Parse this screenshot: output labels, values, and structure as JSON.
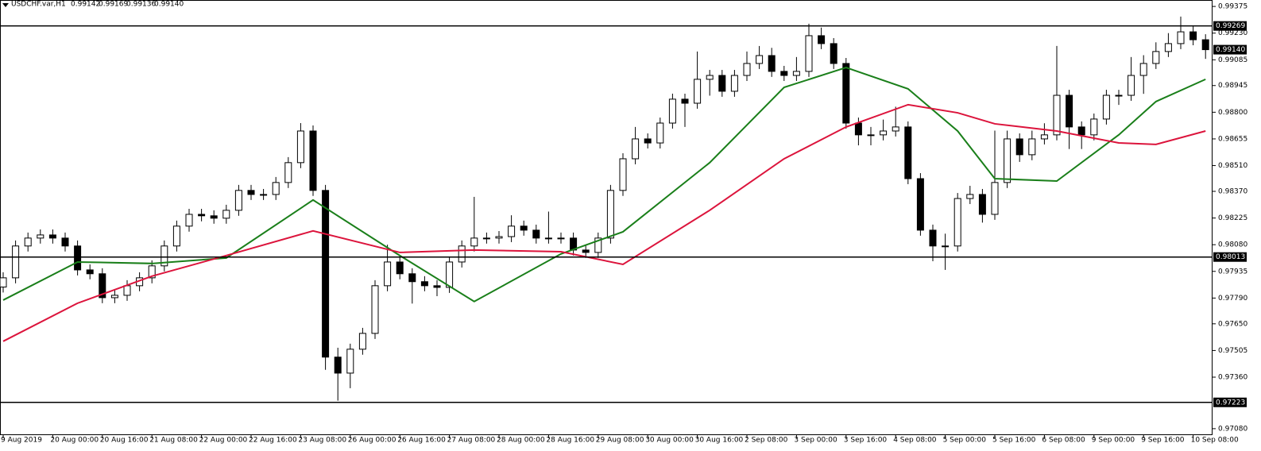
{
  "chart_data": {
    "type": "candlestick",
    "header": {
      "symbol": "USDCHF.var,H1",
      "quote": [
        "0.99142",
        "0.99169",
        "0.99136",
        "0.99140"
      ]
    },
    "time_labels": [
      "9 Aug 2019",
      "20 Aug 00:00",
      "20 Aug 16:00",
      "21 Aug 08:00",
      "22 Aug 00:00",
      "22 Aug 16:00",
      "23 Aug 08:00",
      "26 Aug 00:00",
      "26 Aug 16:00",
      "27 Aug 08:00",
      "28 Aug 00:00",
      "28 Aug 16:00",
      "29 Aug 08:00",
      "30 Aug 00:00",
      "30 Aug 16:00",
      "2 Sep 08:00",
      "3 Sep 00:00",
      "3 Sep 16:00",
      "4 Sep 08:00",
      "5 Sep 00:00",
      "5 Sep 16:00",
      "6 Sep 08:00",
      "9 Sep 00:00",
      "9 Sep 16:00",
      "10 Sep 08:00"
    ],
    "open": [
      0.9785,
      0.979,
      0.98073,
      0.98116,
      0.98133,
      0.98116,
      0.98073,
      0.97943,
      0.97922,
      0.97792,
      0.97805,
      0.97857,
      0.979,
      0.97965,
      0.98073,
      0.98181,
      0.98245,
      0.98237,
      0.98224,
      0.98267,
      0.98375,
      0.98353,
      0.98353,
      0.98418,
      0.98526,
      0.98698,
      0.98375,
      0.97469,
      0.97382,
      0.97512,
      0.97598,
      0.97857,
      0.97986,
      0.97922,
      0.97879,
      0.97857,
      0.97848,
      0.97986,
      0.98073,
      0.98116,
      0.98116,
      0.98124,
      0.98181,
      0.98159,
      0.98116,
      0.98116,
      0.98116,
      0.98051,
      0.98038,
      0.98116,
      0.98375,
      0.98547,
      0.98655,
      0.98633,
      0.98741,
      0.98871,
      0.98849,
      0.98979,
      0.99,
      0.98914,
      0.99,
      0.99065,
      0.99108,
      0.99022,
      0.99,
      0.99022,
      0.99216,
      0.99173,
      0.99065,
      0.98741,
      0.98677,
      0.98677,
      0.98698,
      0.9872,
      0.98439,
      0.98159,
      0.98073,
      0.98073,
      0.98331,
      0.98353,
      0.98245,
      0.98418,
      0.98655,
      0.98569,
      0.98655,
      0.98677,
      0.98892,
      0.9872,
      0.98677,
      0.98763,
      0.98892,
      0.98892,
      0.99,
      0.99065,
      0.9913,
      0.99173,
      0.99237,
      0.99194
    ],
    "high": [
      0.9793,
      0.98103,
      0.98146,
      0.98163,
      0.98163,
      0.98146,
      0.98103,
      0.97973,
      0.97952,
      0.97835,
      0.97887,
      0.9793,
      0.97995,
      0.98103,
      0.98211,
      0.98275,
      0.98275,
      0.98267,
      0.98297,
      0.98405,
      0.98405,
      0.98383,
      0.98448,
      0.98556,
      0.98741,
      0.98728,
      0.98405,
      0.9752,
      0.97542,
      0.97628,
      0.97887,
      0.9808,
      0.98016,
      0.97952,
      0.97909,
      0.97887,
      0.98016,
      0.98103,
      0.9834,
      0.98146,
      0.98154,
      0.9824,
      0.98211,
      0.98189,
      0.9826,
      0.98146,
      0.98146,
      0.98081,
      0.98146,
      0.98405,
      0.98577,
      0.9872,
      0.98685,
      0.98771,
      0.98901,
      0.98901,
      0.9913,
      0.9903,
      0.9903,
      0.9903,
      0.9913,
      0.9916,
      0.9915,
      0.99052,
      0.991,
      0.99281,
      0.9926,
      0.99203,
      0.99095,
      0.98771,
      0.9872,
      0.9876,
      0.9883,
      0.9875,
      0.98469,
      0.98189,
      0.9814,
      0.98361,
      0.984,
      0.98383,
      0.987,
      0.987,
      0.98685,
      0.987,
      0.9874,
      0.9916,
      0.98922,
      0.9875,
      0.98793,
      0.98922,
      0.98922,
      0.991,
      0.9911,
      0.9918,
      0.9923,
      0.9932,
      0.99267,
      0.99224
    ],
    "low": [
      0.9782,
      0.9787,
      0.98043,
      0.98086,
      0.98086,
      0.98043,
      0.97913,
      0.97892,
      0.97762,
      0.97762,
      0.97775,
      0.97827,
      0.9787,
      0.97935,
      0.98043,
      0.98151,
      0.98207,
      0.98194,
      0.98194,
      0.98237,
      0.98323,
      0.98323,
      0.98323,
      0.98388,
      0.98496,
      0.98345,
      0.974,
      0.97232,
      0.973,
      0.97482,
      0.97568,
      0.97827,
      0.97892,
      0.9776,
      0.97827,
      0.978,
      0.97818,
      0.97956,
      0.98043,
      0.98086,
      0.98086,
      0.98094,
      0.98129,
      0.98086,
      0.98086,
      0.98086,
      0.98021,
      0.98008,
      0.98008,
      0.98086,
      0.98345,
      0.98517,
      0.98603,
      0.98603,
      0.98711,
      0.9872,
      0.98819,
      0.9889,
      0.98884,
      0.98884,
      0.9897,
      0.99035,
      0.98992,
      0.9897,
      0.9897,
      0.98992,
      0.99143,
      0.99035,
      0.98711,
      0.9862,
      0.9862,
      0.98647,
      0.98668,
      0.98409,
      0.98129,
      0.9799,
      0.97943,
      0.98043,
      0.98301,
      0.982,
      0.98215,
      0.98388,
      0.9853,
      0.98539,
      0.98625,
      0.98647,
      0.986,
      0.986,
      0.98647,
      0.98733,
      0.9884,
      0.98862,
      0.989,
      0.99035,
      0.991,
      0.99143,
      0.99164,
      0.9909
    ],
    "close": [
      0.979,
      0.98073,
      0.98116,
      0.98133,
      0.98116,
      0.98073,
      0.97943,
      0.97922,
      0.97792,
      0.97805,
      0.97857,
      0.979,
      0.97965,
      0.98073,
      0.98181,
      0.98245,
      0.98237,
      0.98224,
      0.98267,
      0.98375,
      0.98353,
      0.98353,
      0.98418,
      0.98526,
      0.98698,
      0.98375,
      0.97469,
      0.97382,
      0.97512,
      0.97598,
      0.97857,
      0.97986,
      0.97922,
      0.97879,
      0.97857,
      0.97848,
      0.97986,
      0.98073,
      0.98116,
      0.98116,
      0.98124,
      0.98181,
      0.98159,
      0.98116,
      0.98116,
      0.98116,
      0.98051,
      0.98038,
      0.98116,
      0.98375,
      0.98547,
      0.98655,
      0.98633,
      0.98741,
      0.98871,
      0.98849,
      0.98979,
      0.99,
      0.98914,
      0.99,
      0.99065,
      0.99108,
      0.99022,
      0.99,
      0.99022,
      0.99216,
      0.99173,
      0.99065,
      0.98741,
      0.98677,
      0.98677,
      0.98698,
      0.9872,
      0.98439,
      0.98159,
      0.98073,
      0.98073,
      0.98331,
      0.98353,
      0.98245,
      0.98418,
      0.98655,
      0.98569,
      0.98655,
      0.98677,
      0.98892,
      0.9872,
      0.98677,
      0.98763,
      0.98892,
      0.98892,
      0.99,
      0.99065,
      0.9913,
      0.99173,
      0.99237,
      0.99194,
      0.9914
    ],
    "bull_color": "#ffffff",
    "bear_color": "#000000",
    "candle_outline": "#000000",
    "series": [
      {
        "color": "#1a7f1a",
        "x": [
          0,
          6,
          12,
          18,
          25,
          32,
          38,
          45,
          50,
          57,
          63,
          68,
          73,
          77,
          80,
          85,
          90,
          93,
          97
        ],
        "values": [
          0.97779,
          0.97986,
          0.97978,
          0.98008,
          0.98323,
          0.98021,
          0.97771,
          0.9803,
          0.9815,
          0.98526,
          0.98935,
          0.99043,
          0.98927,
          0.98698,
          0.98439,
          0.98426,
          0.98677,
          0.98858,
          0.98979
        ]
      },
      {
        "color": "#dc143c",
        "x": [
          0,
          6,
          12,
          18,
          25,
          32,
          38,
          45,
          50,
          57,
          63,
          68,
          73,
          77,
          80,
          85,
          90,
          93,
          97
        ],
        "values": [
          0.97555,
          0.97762,
          0.97909,
          0.98021,
          0.98155,
          0.98038,
          0.98051,
          0.98042,
          0.97973,
          0.98267,
          0.98547,
          0.9872,
          0.98841,
          0.98797,
          0.98737,
          0.98698,
          0.98633,
          0.98625,
          0.98698
        ]
      }
    ],
    "hlines": [
      0.99269,
      0.98013,
      0.97223
    ],
    "current_price": {
      "value": 0.9914,
      "label": "0.99140"
    },
    "ylim": [
      0.97045,
      0.9941
    ],
    "yticks": [
      0.99375,
      {
        "value": 0.9923,
        "label": "0.99230"
      },
      0.99085,
      0.98945,
      {
        "value": 0.988,
        "label": "0.98800"
      },
      0.98655,
      {
        "value": 0.9851,
        "label": "0.98510"
      },
      {
        "value": 0.9837,
        "label": "0.98370"
      },
      0.98225,
      {
        "value": 0.9808,
        "label": "0.98080"
      },
      0.97935,
      {
        "value": 0.9779,
        "label": "0.97790"
      },
      {
        "value": 0.9765,
        "label": "0.97650"
      },
      0.97505,
      {
        "value": 0.9736,
        "label": "0.97360"
      },
      {
        "value": 0.9708,
        "label": "0.97080"
      }
    ]
  }
}
